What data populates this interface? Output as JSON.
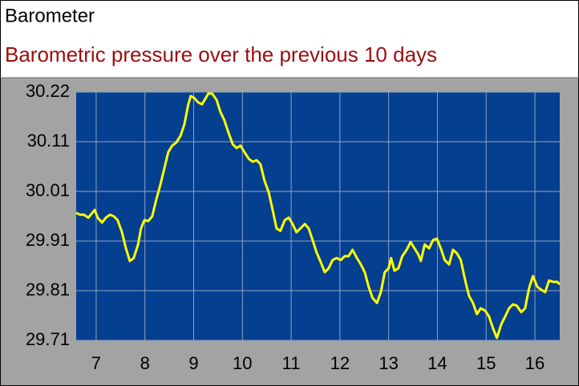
{
  "chart_data": {
    "type": "line",
    "title": "Barometer",
    "subtitle": "Barometric pressure over the previous 10 days",
    "color": "#ffff00",
    "grid": true,
    "xlim": [
      6.59,
      16.51
    ],
    "xticks": [
      7,
      8,
      9,
      10,
      11,
      12,
      13,
      14,
      15,
      16
    ],
    "ylim": [
      29.706,
      30.216
    ],
    "yticks": [
      {
        "value": 29.706,
        "label": "29.71"
      },
      {
        "value": 29.808,
        "label": "29.81"
      },
      {
        "value": 29.91,
        "label": "29.91"
      },
      {
        "value": 30.012,
        "label": "30.01"
      },
      {
        "value": 30.114,
        "label": "30.11"
      },
      {
        "value": 30.216,
        "label": "30.22"
      }
    ],
    "x": [
      6.59,
      6.67,
      6.75,
      6.84,
      6.92,
      6.97,
      7.03,
      7.12,
      7.2,
      7.28,
      7.36,
      7.44,
      7.53,
      7.61,
      7.69,
      7.77,
      7.86,
      7.92,
      7.99,
      8.07,
      8.15,
      8.23,
      8.32,
      8.4,
      8.48,
      8.56,
      8.64,
      8.73,
      8.81,
      8.89,
      8.94,
      9.01,
      9.09,
      9.17,
      9.25,
      9.3,
      9.38,
      9.47,
      9.55,
      9.63,
      9.71,
      9.8,
      9.88,
      9.96,
      10.04,
      10.13,
      10.21,
      10.29,
      10.37,
      10.45,
      10.54,
      10.62,
      10.7,
      10.78,
      10.87,
      10.95,
      11.03,
      11.11,
      11.19,
      11.28,
      11.36,
      11.44,
      11.52,
      11.61,
      11.69,
      11.77,
      11.85,
      11.93,
      12.02,
      12.1,
      12.18,
      12.26,
      12.35,
      12.43,
      12.51,
      12.59,
      12.67,
      12.76,
      12.84,
      12.92,
      13.0,
      13.05,
      13.12,
      13.2,
      13.28,
      13.37,
      13.45,
      13.53,
      13.61,
      13.66,
      13.74,
      13.83,
      13.91,
      13.99,
      14.07,
      14.15,
      14.24,
      14.32,
      14.4,
      14.48,
      14.57,
      14.65,
      14.73,
      14.81,
      14.89,
      14.98,
      15.06,
      15.14,
      15.22,
      15.31,
      15.39,
      15.47,
      15.55,
      15.63,
      15.72,
      15.8,
      15.88,
      15.96,
      16.05,
      16.13,
      16.21,
      16.29,
      16.38,
      16.46,
      16.51
    ],
    "values": [
      29.968,
      29.964,
      29.964,
      29.958,
      29.968,
      29.974,
      29.958,
      29.948,
      29.958,
      29.964,
      29.961,
      29.953,
      29.928,
      29.895,
      29.869,
      29.875,
      29.903,
      29.936,
      29.953,
      29.951,
      29.961,
      29.994,
      30.027,
      30.06,
      30.093,
      30.106,
      30.112,
      30.126,
      30.15,
      30.191,
      30.208,
      30.204,
      30.195,
      30.191,
      30.204,
      30.213,
      30.213,
      30.2,
      30.175,
      30.158,
      30.134,
      30.109,
      30.101,
      30.106,
      30.093,
      30.079,
      30.073,
      30.076,
      30.068,
      30.035,
      30.01,
      29.974,
      29.936,
      29.931,
      29.953,
      29.958,
      29.945,
      29.928,
      29.936,
      29.945,
      29.936,
      29.912,
      29.887,
      29.866,
      29.846,
      29.854,
      29.871,
      29.875,
      29.871,
      29.879,
      29.879,
      29.892,
      29.875,
      29.862,
      29.846,
      29.816,
      29.793,
      29.783,
      29.805,
      29.846,
      29.854,
      29.875,
      29.849,
      29.854,
      29.879,
      29.892,
      29.908,
      29.895,
      29.882,
      29.869,
      29.903,
      29.895,
      29.912,
      29.915,
      29.895,
      29.871,
      29.862,
      29.892,
      29.885,
      29.871,
      29.829,
      29.797,
      29.783,
      29.76,
      29.772,
      29.767,
      29.755,
      29.731,
      29.711,
      29.739,
      29.755,
      29.772,
      29.78,
      29.777,
      29.764,
      29.772,
      29.813,
      29.838,
      29.816,
      29.81,
      29.805,
      29.829,
      29.826,
      29.826,
      29.821
    ]
  }
}
